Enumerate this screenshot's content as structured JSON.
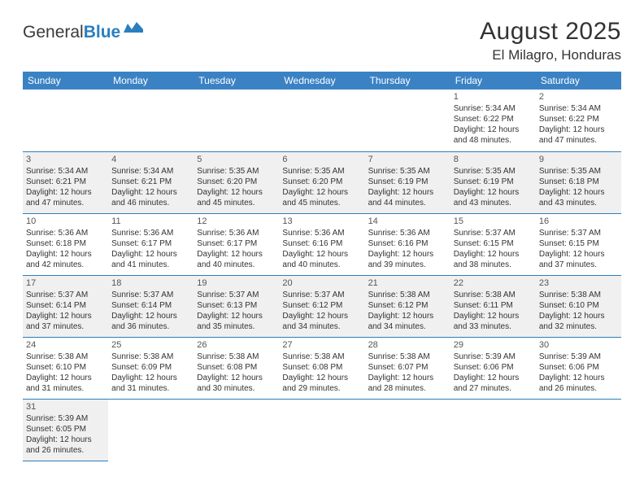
{
  "logo": {
    "text1": "General",
    "text2": "Blue"
  },
  "title": "August 2025",
  "location": "El Milagro, Honduras",
  "colors": {
    "header_bg": "#3b82c4",
    "header_fg": "#ffffff",
    "row_alt_bg": "#f0f0f0",
    "border": "#2a7fbf",
    "text": "#333333"
  },
  "day_headers": [
    "Sunday",
    "Monday",
    "Tuesday",
    "Wednesday",
    "Thursday",
    "Friday",
    "Saturday"
  ],
  "weeks": [
    [
      null,
      null,
      null,
      null,
      null,
      {
        "n": "1",
        "sr": "5:34 AM",
        "ss": "6:22 PM",
        "d1": "12 hours",
        "d2": "and 48 minutes."
      },
      {
        "n": "2",
        "sr": "5:34 AM",
        "ss": "6:22 PM",
        "d1": "12 hours",
        "d2": "and 47 minutes."
      }
    ],
    [
      {
        "n": "3",
        "sr": "5:34 AM",
        "ss": "6:21 PM",
        "d1": "12 hours",
        "d2": "and 47 minutes."
      },
      {
        "n": "4",
        "sr": "5:34 AM",
        "ss": "6:21 PM",
        "d1": "12 hours",
        "d2": "and 46 minutes."
      },
      {
        "n": "5",
        "sr": "5:35 AM",
        "ss": "6:20 PM",
        "d1": "12 hours",
        "d2": "and 45 minutes."
      },
      {
        "n": "6",
        "sr": "5:35 AM",
        "ss": "6:20 PM",
        "d1": "12 hours",
        "d2": "and 45 minutes."
      },
      {
        "n": "7",
        "sr": "5:35 AM",
        "ss": "6:19 PM",
        "d1": "12 hours",
        "d2": "and 44 minutes."
      },
      {
        "n": "8",
        "sr": "5:35 AM",
        "ss": "6:19 PM",
        "d1": "12 hours",
        "d2": "and 43 minutes."
      },
      {
        "n": "9",
        "sr": "5:35 AM",
        "ss": "6:18 PM",
        "d1": "12 hours",
        "d2": "and 43 minutes."
      }
    ],
    [
      {
        "n": "10",
        "sr": "5:36 AM",
        "ss": "6:18 PM",
        "d1": "12 hours",
        "d2": "and 42 minutes."
      },
      {
        "n": "11",
        "sr": "5:36 AM",
        "ss": "6:17 PM",
        "d1": "12 hours",
        "d2": "and 41 minutes."
      },
      {
        "n": "12",
        "sr": "5:36 AM",
        "ss": "6:17 PM",
        "d1": "12 hours",
        "d2": "and 40 minutes."
      },
      {
        "n": "13",
        "sr": "5:36 AM",
        "ss": "6:16 PM",
        "d1": "12 hours",
        "d2": "and 40 minutes."
      },
      {
        "n": "14",
        "sr": "5:36 AM",
        "ss": "6:16 PM",
        "d1": "12 hours",
        "d2": "and 39 minutes."
      },
      {
        "n": "15",
        "sr": "5:37 AM",
        "ss": "6:15 PM",
        "d1": "12 hours",
        "d2": "and 38 minutes."
      },
      {
        "n": "16",
        "sr": "5:37 AM",
        "ss": "6:15 PM",
        "d1": "12 hours",
        "d2": "and 37 minutes."
      }
    ],
    [
      {
        "n": "17",
        "sr": "5:37 AM",
        "ss": "6:14 PM",
        "d1": "12 hours",
        "d2": "and 37 minutes."
      },
      {
        "n": "18",
        "sr": "5:37 AM",
        "ss": "6:14 PM",
        "d1": "12 hours",
        "d2": "and 36 minutes."
      },
      {
        "n": "19",
        "sr": "5:37 AM",
        "ss": "6:13 PM",
        "d1": "12 hours",
        "d2": "and 35 minutes."
      },
      {
        "n": "20",
        "sr": "5:37 AM",
        "ss": "6:12 PM",
        "d1": "12 hours",
        "d2": "and 34 minutes."
      },
      {
        "n": "21",
        "sr": "5:38 AM",
        "ss": "6:12 PM",
        "d1": "12 hours",
        "d2": "and 34 minutes."
      },
      {
        "n": "22",
        "sr": "5:38 AM",
        "ss": "6:11 PM",
        "d1": "12 hours",
        "d2": "and 33 minutes."
      },
      {
        "n": "23",
        "sr": "5:38 AM",
        "ss": "6:10 PM",
        "d1": "12 hours",
        "d2": "and 32 minutes."
      }
    ],
    [
      {
        "n": "24",
        "sr": "5:38 AM",
        "ss": "6:10 PM",
        "d1": "12 hours",
        "d2": "and 31 minutes."
      },
      {
        "n": "25",
        "sr": "5:38 AM",
        "ss": "6:09 PM",
        "d1": "12 hours",
        "d2": "and 31 minutes."
      },
      {
        "n": "26",
        "sr": "5:38 AM",
        "ss": "6:08 PM",
        "d1": "12 hours",
        "d2": "and 30 minutes."
      },
      {
        "n": "27",
        "sr": "5:38 AM",
        "ss": "6:08 PM",
        "d1": "12 hours",
        "d2": "and 29 minutes."
      },
      {
        "n": "28",
        "sr": "5:38 AM",
        "ss": "6:07 PM",
        "d1": "12 hours",
        "d2": "and 28 minutes."
      },
      {
        "n": "29",
        "sr": "5:39 AM",
        "ss": "6:06 PM",
        "d1": "12 hours",
        "d2": "and 27 minutes."
      },
      {
        "n": "30",
        "sr": "5:39 AM",
        "ss": "6:06 PM",
        "d1": "12 hours",
        "d2": "and 26 minutes."
      }
    ],
    [
      {
        "n": "31",
        "sr": "5:39 AM",
        "ss": "6:05 PM",
        "d1": "12 hours",
        "d2": "and 26 minutes."
      },
      null,
      null,
      null,
      null,
      null,
      null
    ]
  ],
  "labels": {
    "sunrise": "Sunrise: ",
    "sunset": "Sunset: ",
    "daylight": "Daylight: "
  }
}
